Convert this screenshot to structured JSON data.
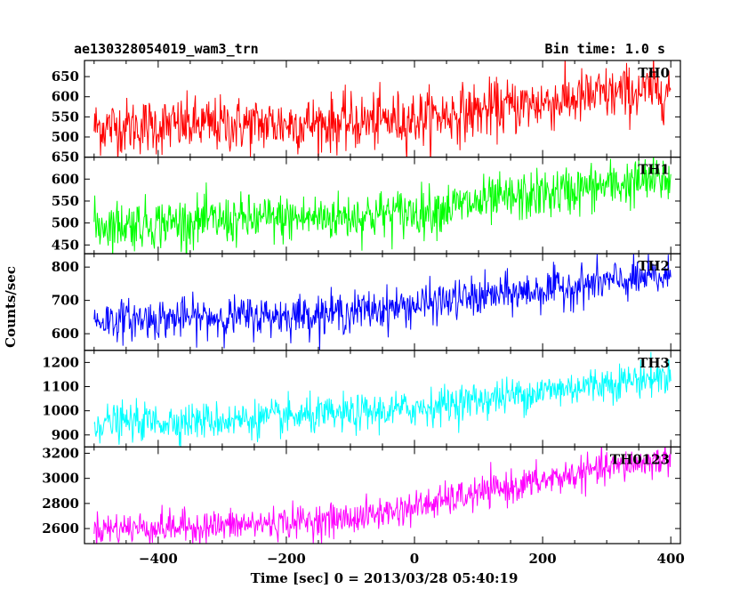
{
  "chart_data": {
    "type": "line",
    "title": "ae130328054019_wam3_trn",
    "subtitle": "Bin time: 1.0 s",
    "xlabel": "Time [sec] 0 = 2013/03/28 05:40:19",
    "ylabel": "Counts/sec",
    "xlim": [
      -515,
      415
    ],
    "x_ticks": [
      -400,
      -200,
      0,
      200,
      400
    ],
    "x_tick_labels": [
      "−400",
      "−200",
      "0",
      "200",
      "400"
    ],
    "x_data_range": [
      -500,
      400
    ],
    "bin_time_s": 1.0,
    "grid": false,
    "legend": "none",
    "series": [
      {
        "name": "TH0",
        "color": "#ff0000",
        "ylim": [
          450,
          690
        ],
        "y_ticks": [
          500,
          550,
          600,
          650
        ],
        "y_tick_labels": [
          "500",
          "550",
          "600",
          "650"
        ],
        "trend": [
          [
            -500,
            525
          ],
          [
            -300,
            530
          ],
          [
            -100,
            535
          ],
          [
            0,
            545
          ],
          [
            100,
            565
          ],
          [
            200,
            585
          ],
          [
            300,
            605
          ],
          [
            400,
            620
          ]
        ],
        "noise_sd": 35
      },
      {
        "name": "TH1",
        "color": "#00ff00",
        "ylim": [
          430,
          650
        ],
        "y_ticks": [
          450,
          500,
          550,
          600,
          650
        ],
        "y_tick_labels": [
          "450",
          "500",
          "550",
          "600",
          "650"
        ],
        "trend": [
          [
            -500,
            495
          ],
          [
            -300,
            505
          ],
          [
            -100,
            515
          ],
          [
            0,
            525
          ],
          [
            100,
            545
          ],
          [
            200,
            565
          ],
          [
            300,
            585
          ],
          [
            400,
            600
          ]
        ],
        "noise_sd": 28
      },
      {
        "name": "TH2",
        "color": "#0000ff",
        "ylim": [
          550,
          840
        ],
        "y_ticks": [
          600,
          700,
          800
        ],
        "y_tick_labels": [
          "600",
          "700",
          "800"
        ],
        "trend": [
          [
            -500,
            640
          ],
          [
            -300,
            650
          ],
          [
            -200,
            655
          ],
          [
            -100,
            665
          ],
          [
            0,
            685
          ],
          [
            100,
            710
          ],
          [
            200,
            730
          ],
          [
            300,
            755
          ],
          [
            400,
            770
          ]
        ],
        "noise_sd": 30
      },
      {
        "name": "TH3",
        "color": "#00ffff",
        "ylim": [
          850,
          1250
        ],
        "y_ticks": [
          900,
          1000,
          1100,
          1200
        ],
        "y_tick_labels": [
          "900",
          "1000",
          "1100",
          "1200"
        ],
        "trend": [
          [
            -500,
            950
          ],
          [
            -300,
            960
          ],
          [
            -100,
            985
          ],
          [
            0,
            1010
          ],
          [
            100,
            1045
          ],
          [
            200,
            1080
          ],
          [
            300,
            1115
          ],
          [
            400,
            1145
          ]
        ],
        "noise_sd": 38
      },
      {
        "name": "TH0123",
        "color": "#ff00ff",
        "ylim": [
          2480,
          3250
        ],
        "y_ticks": [
          2600,
          2800,
          3000,
          3200
        ],
        "y_tick_labels": [
          "2600",
          "2800",
          "3000",
          "3200"
        ],
        "trend": [
          [
            -500,
            2600
          ],
          [
            -300,
            2620
          ],
          [
            -100,
            2680
          ],
          [
            0,
            2770
          ],
          [
            100,
            2880
          ],
          [
            200,
            2980
          ],
          [
            300,
            3080
          ],
          [
            400,
            3160
          ]
        ],
        "noise_sd": 65
      }
    ]
  }
}
